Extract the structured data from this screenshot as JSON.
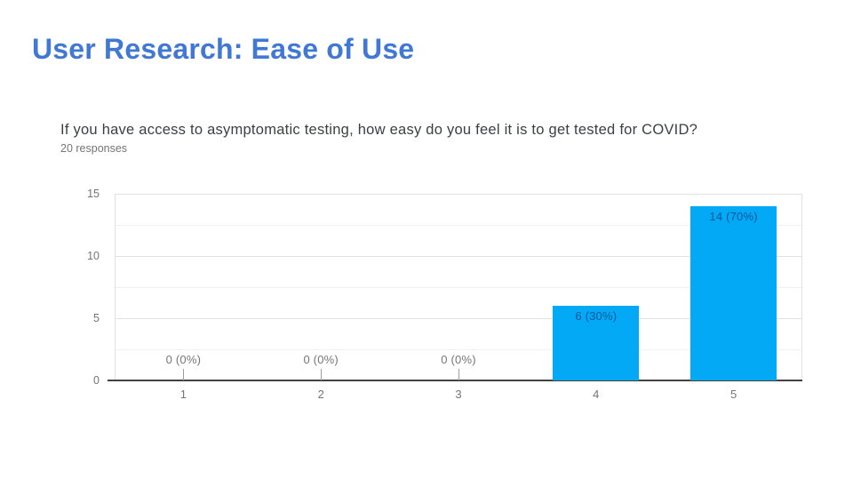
{
  "slide": {
    "title": "User Research: Ease of Use"
  },
  "chart_data": {
    "type": "bar",
    "title": "If you have access to asymptomatic testing, how easy do you feel it is to get tested for COVID?",
    "subtitle": "20 responses",
    "total_responses": 20,
    "xlabel": "",
    "ylabel": "",
    "categories": [
      "1",
      "2",
      "3",
      "4",
      "5"
    ],
    "values": [
      0,
      0,
      0,
      6,
      14
    ],
    "bar_labels": [
      "0 (0%)",
      "0 (0%)",
      "0 (0%)",
      "6 (30%)",
      "14 (70%)"
    ],
    "ylim": [
      0,
      15
    ],
    "yticks": [
      0,
      5,
      10,
      15
    ],
    "minor_ticks": [
      2.5,
      7.5,
      12.5
    ],
    "grid": true,
    "legend_position": "none",
    "colors": {
      "bar": "#03A9F4",
      "bar_value_label": "#01579B",
      "zero_value_label": "#757575",
      "annotation_stem": "#9e9e9e",
      "axis_tick_text": "#757575",
      "axis_baseline": "#424242",
      "gridline_major": "#e2e2e2",
      "gridline_minor": "#f1f1f1",
      "slide_title": "#4078D4",
      "question_text": "#3c4043",
      "subtitle_text": "#757575"
    }
  }
}
